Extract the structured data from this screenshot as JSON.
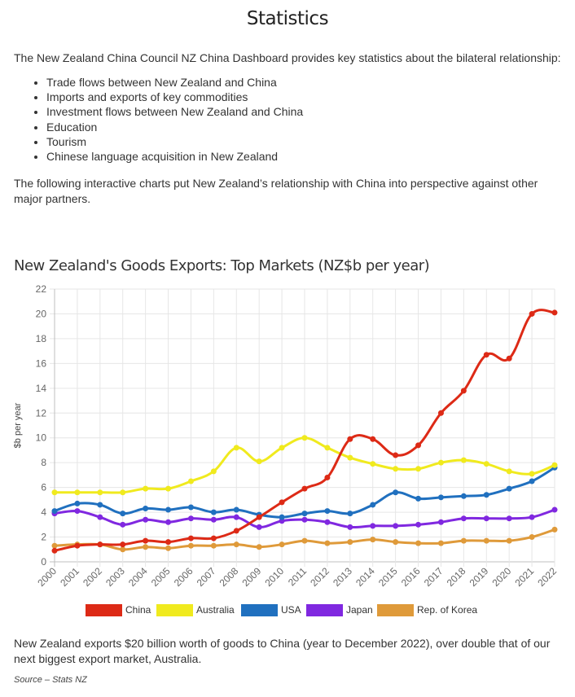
{
  "page": {
    "title": "Statistics",
    "intro": "The New Zealand China Council NZ China Dashboard provides key statistics about the bilateral relationship:",
    "bullets": [
      "Trade flows between New Zealand and China",
      "Imports and exports of key commodities",
      "Investment flows between New Zealand and China",
      "Education",
      "Tourism",
      "Chinese language acquisition in New Zealand"
    ],
    "paragraph2": "The following interactive charts put New Zealand’s relationship with China into perspective against other major partners.",
    "note": "New Zealand exports $20 billion worth of goods to China (year to December 2022), over double that of our next biggest export market, Australia.",
    "source": "Source – Stats NZ"
  },
  "chart_data": {
    "type": "line",
    "title": "New Zealand's Goods Exports: Top Markets (NZ$b per year)",
    "xlabel": "",
    "ylabel": "$b per year",
    "ylim": [
      0,
      22
    ],
    "yticks": [
      0,
      2,
      4,
      6,
      8,
      10,
      12,
      14,
      16,
      18,
      20,
      22
    ],
    "grid": true,
    "legend_position": "bottom",
    "categories": [
      "2000",
      "2001",
      "2002",
      "2003",
      "2004",
      "2005",
      "2006",
      "2007",
      "2008",
      "2009",
      "2010",
      "2011",
      "2012",
      "2013",
      "2014",
      "2015",
      "2016",
      "2017",
      "2018",
      "2019",
      "2020",
      "2021",
      "2022"
    ],
    "series": [
      {
        "name": "China",
        "color": "#dd2a16",
        "values": [
          0.9,
          1.3,
          1.4,
          1.4,
          1.7,
          1.6,
          1.9,
          1.9,
          2.5,
          3.6,
          4.8,
          5.9,
          6.8,
          9.9,
          9.9,
          8.6,
          9.4,
          12.0,
          13.8,
          16.7,
          16.4,
          20.0,
          20.1
        ]
      },
      {
        "name": "Australia",
        "color": "#f0ea1e",
        "values": [
          5.6,
          5.6,
          5.6,
          5.6,
          5.9,
          5.9,
          6.5,
          7.3,
          9.2,
          8.1,
          9.2,
          10.0,
          9.2,
          8.4,
          7.9,
          7.5,
          7.5,
          8.0,
          8.2,
          7.9,
          7.3,
          7.1,
          7.8
        ]
      },
      {
        "name": "USA",
        "color": "#2070bf",
        "values": [
          4.1,
          4.7,
          4.6,
          3.9,
          4.3,
          4.2,
          4.4,
          4.0,
          4.2,
          3.8,
          3.6,
          3.9,
          4.1,
          3.9,
          4.6,
          5.6,
          5.1,
          5.2,
          5.3,
          5.4,
          5.9,
          6.5,
          7.6
        ]
      },
      {
        "name": "Japan",
        "color": "#8028e0",
        "values": [
          3.9,
          4.1,
          3.6,
          3.0,
          3.4,
          3.2,
          3.5,
          3.4,
          3.6,
          2.8,
          3.3,
          3.4,
          3.2,
          2.8,
          2.9,
          2.9,
          3.0,
          3.2,
          3.5,
          3.5,
          3.5,
          3.6,
          4.2
        ]
      },
      {
        "name": "Rep. of Korea",
        "color": "#df9a3a",
        "values": [
          1.3,
          1.4,
          1.4,
          1.0,
          1.2,
          1.1,
          1.3,
          1.3,
          1.4,
          1.2,
          1.4,
          1.7,
          1.5,
          1.6,
          1.8,
          1.6,
          1.5,
          1.5,
          1.7,
          1.7,
          1.7,
          2.0,
          2.6
        ]
      }
    ]
  }
}
